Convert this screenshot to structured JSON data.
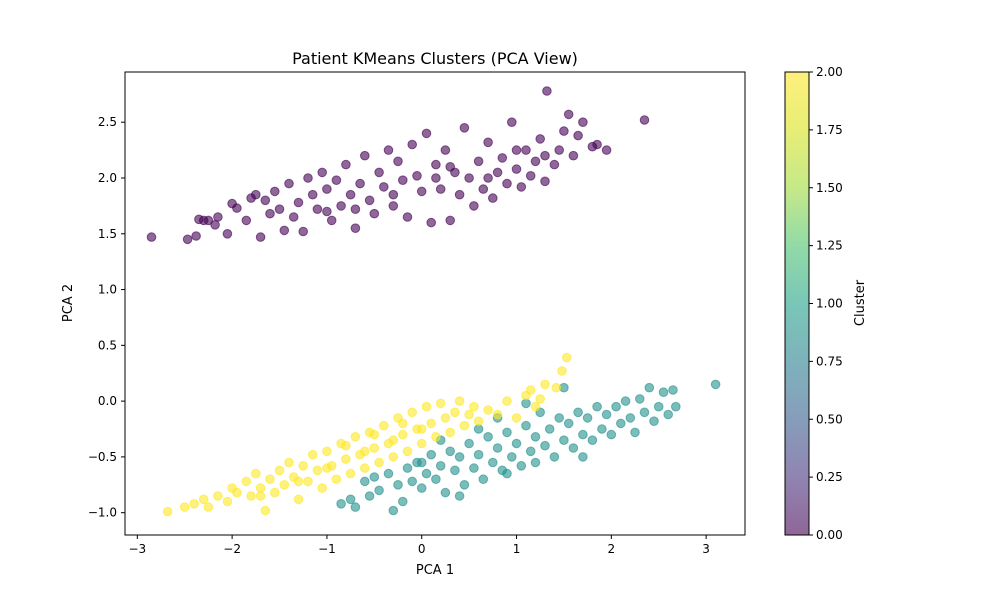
{
  "chart_data": {
    "type": "scatter",
    "title": "Patient KMeans Clusters (PCA View)",
    "xlabel": "PCA 1",
    "ylabel": "PCA 2",
    "xlim": [
      -3.13,
      3.41
    ],
    "ylim": [
      -1.2,
      2.95
    ],
    "xticks": [
      -3,
      -2,
      -1,
      0,
      1,
      2,
      3
    ],
    "yticks": [
      -1.0,
      -0.5,
      0.0,
      0.5,
      1.0,
      1.5,
      2.0,
      2.5
    ],
    "ytick_labels": [
      "−1.0",
      "−0.5",
      "0.0",
      "0.5",
      "1.0",
      "1.5",
      "2.0",
      "2.5"
    ],
    "xtick_labels": [
      "−3",
      "−2",
      "−1",
      "0",
      "1",
      "2",
      "3"
    ],
    "grid": false,
    "point_alpha": 0.6,
    "colorbar": {
      "label": "Cluster",
      "range": [
        0,
        2
      ],
      "ticks": [
        0,
        0.25,
        0.5,
        0.75,
        1.0,
        1.25,
        1.5,
        1.75,
        2.0
      ],
      "tick_labels": [
        "0.00",
        "0.25",
        "0.50",
        "0.75",
        "1.00",
        "1.25",
        "1.50",
        "1.75",
        "2.00"
      ],
      "colormap": "viridis"
    },
    "series": [
      {
        "cluster": 0,
        "color": "#440154",
        "points": [
          [
            -2.85,
            1.47
          ],
          [
            -2.47,
            1.45
          ],
          [
            -2.38,
            1.48
          ],
          [
            -2.35,
            1.63
          ],
          [
            -2.25,
            1.62
          ],
          [
            -2.18,
            1.58
          ],
          [
            -2.15,
            1.65
          ],
          [
            -2.05,
            1.5
          ],
          [
            -2.0,
            1.77
          ],
          [
            -1.95,
            1.73
          ],
          [
            -1.85,
            1.62
          ],
          [
            -1.75,
            1.85
          ],
          [
            -1.7,
            1.47
          ],
          [
            -1.65,
            1.8
          ],
          [
            -1.6,
            1.68
          ],
          [
            -1.55,
            1.88
          ],
          [
            -1.5,
            1.72
          ],
          [
            -1.45,
            1.53
          ],
          [
            -1.4,
            1.95
          ],
          [
            -1.35,
            1.65
          ],
          [
            -1.3,
            1.78
          ],
          [
            -1.25,
            1.52
          ],
          [
            -1.2,
            2.0
          ],
          [
            -1.15,
            1.85
          ],
          [
            -1.1,
            1.72
          ],
          [
            -1.05,
            2.05
          ],
          [
            -1.0,
            1.9
          ],
          [
            -0.95,
            1.62
          ],
          [
            -0.9,
            1.98
          ],
          [
            -0.85,
            1.75
          ],
          [
            -0.8,
            2.12
          ],
          [
            -0.75,
            1.85
          ],
          [
            -0.7,
            1.55
          ],
          [
            -0.65,
            1.95
          ],
          [
            -0.6,
            2.2
          ],
          [
            -0.55,
            1.8
          ],
          [
            -0.5,
            1.68
          ],
          [
            -0.45,
            2.05
          ],
          [
            -0.4,
            1.92
          ],
          [
            -0.35,
            2.25
          ],
          [
            -0.3,
            1.75
          ],
          [
            -0.25,
            2.15
          ],
          [
            -0.2,
            1.98
          ],
          [
            -0.15,
            1.65
          ],
          [
            -0.1,
            2.3
          ],
          [
            -0.05,
            2.02
          ],
          [
            0.0,
            1.88
          ],
          [
            0.05,
            2.4
          ],
          [
            0.1,
            1.6
          ],
          [
            0.15,
            2.12
          ],
          [
            0.2,
            1.9
          ],
          [
            0.25,
            2.25
          ],
          [
            0.3,
            1.62
          ],
          [
            0.35,
            2.05
          ],
          [
            0.4,
            1.85
          ],
          [
            0.45,
            2.45
          ],
          [
            0.5,
            2.0
          ],
          [
            0.55,
            1.75
          ],
          [
            0.6,
            2.15
          ],
          [
            0.65,
            1.9
          ],
          [
            0.7,
            2.32
          ],
          [
            0.75,
            1.82
          ],
          [
            0.8,
            2.05
          ],
          [
            0.85,
            2.18
          ],
          [
            0.9,
            1.95
          ],
          [
            0.95,
            2.5
          ],
          [
            1.0,
            2.08
          ],
          [
            1.05,
            1.92
          ],
          [
            1.1,
            2.25
          ],
          [
            1.15,
            2.02
          ],
          [
            1.2,
            2.15
          ],
          [
            1.25,
            2.35
          ],
          [
            1.3,
            1.97
          ],
          [
            1.32,
            2.78
          ],
          [
            1.4,
            2.12
          ],
          [
            1.45,
            2.25
          ],
          [
            1.5,
            2.42
          ],
          [
            1.55,
            2.57
          ],
          [
            1.6,
            2.2
          ],
          [
            1.65,
            2.38
          ],
          [
            1.7,
            2.5
          ],
          [
            1.8,
            2.28
          ],
          [
            1.85,
            2.3
          ],
          [
            1.95,
            2.25
          ],
          [
            2.35,
            2.52
          ],
          [
            -2.3,
            1.62
          ],
          [
            -1.8,
            1.82
          ],
          [
            -0.7,
            1.72
          ],
          [
            0.15,
            2.0
          ],
          [
            0.7,
            2.0
          ],
          [
            -1.0,
            1.7
          ],
          [
            -0.3,
            1.85
          ],
          [
            0.3,
            2.1
          ],
          [
            1.0,
            2.25
          ],
          [
            1.3,
            2.2
          ]
        ]
      },
      {
        "cluster": 1,
        "color": "#21918c",
        "points": [
          [
            -0.85,
            -0.92
          ],
          [
            -0.75,
            -0.88
          ],
          [
            -0.7,
            -0.95
          ],
          [
            -0.6,
            -0.72
          ],
          [
            -0.55,
            -0.85
          ],
          [
            -0.45,
            -0.8
          ],
          [
            -0.35,
            -0.65
          ],
          [
            -0.3,
            -0.98
          ],
          [
            -0.25,
            -0.75
          ],
          [
            -0.2,
            -0.9
          ],
          [
            -0.15,
            -0.6
          ],
          [
            -0.1,
            -0.72
          ],
          [
            -0.05,
            -0.55
          ],
          [
            0.0,
            -0.78
          ],
          [
            0.05,
            -0.65
          ],
          [
            0.1,
            -0.48
          ],
          [
            0.15,
            -0.7
          ],
          [
            0.2,
            -0.58
          ],
          [
            0.25,
            -0.82
          ],
          [
            0.3,
            -0.45
          ],
          [
            0.35,
            -0.62
          ],
          [
            0.4,
            -0.5
          ],
          [
            0.45,
            -0.75
          ],
          [
            0.5,
            -0.38
          ],
          [
            0.55,
            -0.6
          ],
          [
            0.6,
            -0.48
          ],
          [
            0.65,
            -0.7
          ],
          [
            0.7,
            -0.32
          ],
          [
            0.75,
            -0.55
          ],
          [
            0.8,
            -0.42
          ],
          [
            0.85,
            -0.62
          ],
          [
            0.9,
            -0.28
          ],
          [
            0.95,
            -0.5
          ],
          [
            1.0,
            -0.38
          ],
          [
            1.05,
            -0.58
          ],
          [
            1.1,
            -0.22
          ],
          [
            1.15,
            -0.45
          ],
          [
            1.2,
            -0.32
          ],
          [
            1.25,
            -0.1
          ],
          [
            1.3,
            -0.4
          ],
          [
            1.35,
            -0.25
          ],
          [
            1.4,
            -0.5
          ],
          [
            1.45,
            -0.15
          ],
          [
            1.5,
            -0.35
          ],
          [
            1.55,
            -0.2
          ],
          [
            1.6,
            -0.42
          ],
          [
            1.65,
            -0.1
          ],
          [
            1.7,
            -0.3
          ],
          [
            1.75,
            -0.15
          ],
          [
            1.8,
            -0.35
          ],
          [
            1.85,
            -0.05
          ],
          [
            1.9,
            -0.25
          ],
          [
            1.95,
            -0.12
          ],
          [
            2.0,
            -0.3
          ],
          [
            2.05,
            -0.05
          ],
          [
            2.1,
            -0.2
          ],
          [
            2.15,
            0.0
          ],
          [
            2.2,
            -0.15
          ],
          [
            2.25,
            -0.28
          ],
          [
            2.3,
            0.02
          ],
          [
            2.35,
            -0.1
          ],
          [
            2.4,
            0.12
          ],
          [
            2.45,
            -0.18
          ],
          [
            2.5,
            -0.05
          ],
          [
            2.55,
            0.08
          ],
          [
            2.6,
            -0.12
          ],
          [
            2.65,
            0.1
          ],
          [
            2.68,
            -0.05
          ],
          [
            3.1,
            0.15
          ],
          [
            1.5,
            0.12
          ],
          [
            0.2,
            -0.35
          ],
          [
            0.6,
            -0.25
          ],
          [
            0.9,
            -0.65
          ],
          [
            1.2,
            -0.55
          ],
          [
            0.0,
            -0.55
          ],
          [
            0.4,
            -0.85
          ],
          [
            0.8,
            -0.15
          ],
          [
            1.1,
            -0.02
          ],
          [
            -0.5,
            -0.68
          ],
          [
            1.7,
            -0.5
          ]
        ]
      },
      {
        "cluster": 2,
        "color": "#fde725",
        "points": [
          [
            -2.68,
            -0.99
          ],
          [
            -2.5,
            -0.95
          ],
          [
            -2.4,
            -0.92
          ],
          [
            -2.3,
            -0.88
          ],
          [
            -2.25,
            -0.95
          ],
          [
            -2.15,
            -0.85
          ],
          [
            -2.05,
            -0.9
          ],
          [
            -2.0,
            -0.78
          ],
          [
            -1.95,
            -0.82
          ],
          [
            -1.85,
            -0.72
          ],
          [
            -1.8,
            -0.85
          ],
          [
            -1.75,
            -0.65
          ],
          [
            -1.7,
            -0.78
          ],
          [
            -1.65,
            -0.98
          ],
          [
            -1.6,
            -0.7
          ],
          [
            -1.55,
            -0.82
          ],
          [
            -1.5,
            -0.62
          ],
          [
            -1.45,
            -0.75
          ],
          [
            -1.4,
            -0.55
          ],
          [
            -1.35,
            -0.68
          ],
          [
            -1.3,
            -0.88
          ],
          [
            -1.25,
            -0.58
          ],
          [
            -1.2,
            -0.72
          ],
          [
            -1.15,
            -0.48
          ],
          [
            -1.1,
            -0.62
          ],
          [
            -1.05,
            -0.78
          ],
          [
            -1.0,
            -0.45
          ],
          [
            -0.95,
            -0.58
          ],
          [
            -0.9,
            -0.7
          ],
          [
            -0.85,
            -0.38
          ],
          [
            -0.8,
            -0.52
          ],
          [
            -0.75,
            -0.65
          ],
          [
            -0.7,
            -0.32
          ],
          [
            -0.65,
            -0.48
          ],
          [
            -0.6,
            -0.6
          ],
          [
            -0.55,
            -0.28
          ],
          [
            -0.5,
            -0.42
          ],
          [
            -0.45,
            -0.55
          ],
          [
            -0.4,
            -0.22
          ],
          [
            -0.35,
            -0.38
          ],
          [
            -0.3,
            -0.5
          ],
          [
            -0.25,
            -0.15
          ],
          [
            -0.2,
            -0.3
          ],
          [
            -0.15,
            -0.45
          ],
          [
            -0.1,
            -0.1
          ],
          [
            -0.05,
            -0.25
          ],
          [
            0.0,
            -0.38
          ],
          [
            0.05,
            -0.05
          ],
          [
            0.1,
            -0.2
          ],
          [
            0.15,
            -0.32
          ],
          [
            0.2,
            -0.02
          ],
          [
            0.25,
            -0.15
          ],
          [
            0.3,
            -0.28
          ],
          [
            0.35,
            -0.1
          ],
          [
            0.4,
            0.0
          ],
          [
            0.45,
            -0.22
          ],
          [
            0.5,
            -0.12
          ],
          [
            0.55,
            -0.05
          ],
          [
            0.6,
            -0.18
          ],
          [
            0.7,
            -0.08
          ],
          [
            0.8,
            -0.12
          ],
          [
            0.9,
            0.0
          ],
          [
            1.0,
            -0.15
          ],
          [
            1.1,
            0.05
          ],
          [
            1.15,
            0.1
          ],
          [
            1.2,
            -0.05
          ],
          [
            1.25,
            0.02
          ],
          [
            1.3,
            0.15
          ],
          [
            1.42,
            0.12
          ],
          [
            1.48,
            0.27
          ],
          [
            1.53,
            0.39
          ],
          [
            -1.0,
            -0.6
          ],
          [
            -0.6,
            -0.45
          ],
          [
            -0.3,
            -0.35
          ],
          [
            0.0,
            -0.25
          ],
          [
            -1.3,
            -0.72
          ],
          [
            -0.8,
            -0.4
          ],
          [
            -0.5,
            -0.3
          ],
          [
            -0.2,
            -0.2
          ],
          [
            -1.7,
            -0.85
          ]
        ]
      }
    ]
  }
}
